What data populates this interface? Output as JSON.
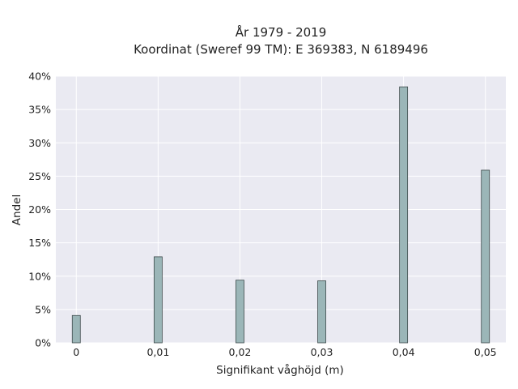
{
  "chart_data": {
    "type": "bar",
    "title": "År 1979 - 2019",
    "subtitle": "Koordinat (Sweref 99 TM): E 369383, N 6189496",
    "xlabel": "Signifikant våghöjd (m)",
    "ylabel": "Andel",
    "x": [
      0,
      0.01,
      0.02,
      0.03,
      0.04,
      0.05
    ],
    "values": [
      4.1,
      12.9,
      9.4,
      9.3,
      38.4,
      25.9
    ],
    "value_unit": "%",
    "xlim": [
      -0.0025,
      0.0525
    ],
    "ylim": [
      0,
      40
    ],
    "x_ticks": [
      {
        "value": 0,
        "label": "0"
      },
      {
        "value": 0.01,
        "label": "0,01"
      },
      {
        "value": 0.02,
        "label": "0,02"
      },
      {
        "value": 0.03,
        "label": "0,03"
      },
      {
        "value": 0.04,
        "label": "0,04"
      },
      {
        "value": 0.05,
        "label": "0,05"
      }
    ],
    "y_ticks": [
      {
        "value": 0,
        "label": "0%"
      },
      {
        "value": 5,
        "label": "5%"
      },
      {
        "value": 10,
        "label": "10%"
      },
      {
        "value": 15,
        "label": "15%"
      },
      {
        "value": 20,
        "label": "20%"
      },
      {
        "value": 25,
        "label": "25%"
      },
      {
        "value": 30,
        "label": "30%"
      },
      {
        "value": 35,
        "label": "35%"
      },
      {
        "value": 40,
        "label": "40%"
      }
    ],
    "grid": true,
    "colors": {
      "plot_background": "#eaeaf2",
      "grid": "#ffffff",
      "bar_fill": "#9bb6b8",
      "bar_edge": "#3d4a4b"
    }
  }
}
